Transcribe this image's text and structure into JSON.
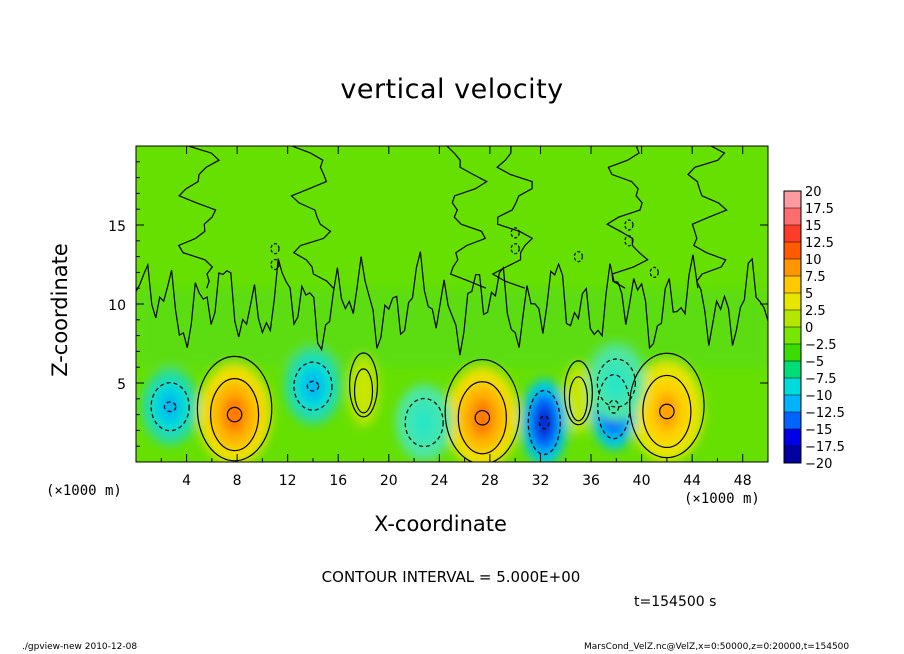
{
  "chart_data": {
    "type": "heatmap",
    "title": "vertical velocity",
    "xlabel": "X-coordinate",
    "ylabel": "Z-coordinate",
    "x_unit": "(×1000 m)",
    "x_unit_right": "(×1000 m)",
    "xlim": [
      0,
      50
    ],
    "ylim": [
      0,
      20
    ],
    "x_ticks": [
      4,
      8,
      12,
      16,
      20,
      24,
      28,
      32,
      36,
      40,
      44,
      48
    ],
    "y_ticks": [
      5,
      10,
      15
    ],
    "contour_interval_text": "CONTOUR INTERVAL = 5.000E+00",
    "time_text": "t=154500 s",
    "colorbar": {
      "labels": [
        "20",
        "17.5",
        "15",
        "12.5",
        "10",
        "7.5",
        "5",
        "2.5",
        "0",
        "−2.5",
        "−5",
        "−7.5",
        "−10",
        "−12.5",
        "−15",
        "−17.5",
        "−20"
      ],
      "colors": [
        "#ff9aa0",
        "#ff6e6e",
        "#ff3c28",
        "#ff5a00",
        "#ff9600",
        "#ffc800",
        "#e6e600",
        "#b4e600",
        "#78e600",
        "#3cdc00",
        "#00dc78",
        "#00dcdc",
        "#00b4ff",
        "#0064ff",
        "#0000e6",
        "#0000a0",
        "#5a00c8"
      ]
    },
    "features": [
      {
        "x": 7.8,
        "z": 3.0,
        "value": 10,
        "sign": "up"
      },
      {
        "x": 27.4,
        "z": 2.8,
        "value": 10,
        "sign": "up"
      },
      {
        "x": 42.0,
        "z": 3.2,
        "value": 7.5,
        "sign": "up"
      },
      {
        "x": 18.0,
        "z": 4.5,
        "value": 2.5,
        "sign": "up"
      },
      {
        "x": 35.0,
        "z": 4.0,
        "value": 2.5,
        "sign": "up"
      },
      {
        "x": 2.7,
        "z": 3.5,
        "value": -7.5,
        "sign": "down"
      },
      {
        "x": 14.0,
        "z": 4.8,
        "value": -7.5,
        "sign": "down"
      },
      {
        "x": 22.8,
        "z": 2.5,
        "value": -5,
        "sign": "down"
      },
      {
        "x": 32.3,
        "z": 2.5,
        "value": -15,
        "sign": "down"
      },
      {
        "x": 37.8,
        "z": 3.5,
        "value": -15,
        "sign": "down"
      },
      {
        "x": 38.0,
        "z": 5.0,
        "value": -5,
        "sign": "down"
      }
    ]
  },
  "footer": {
    "left": "./gpview-new  2010-12-08",
    "right": "MarsCond_VelZ.nc@VelZ,x=0:50000,z=0:20000,t=154500"
  }
}
